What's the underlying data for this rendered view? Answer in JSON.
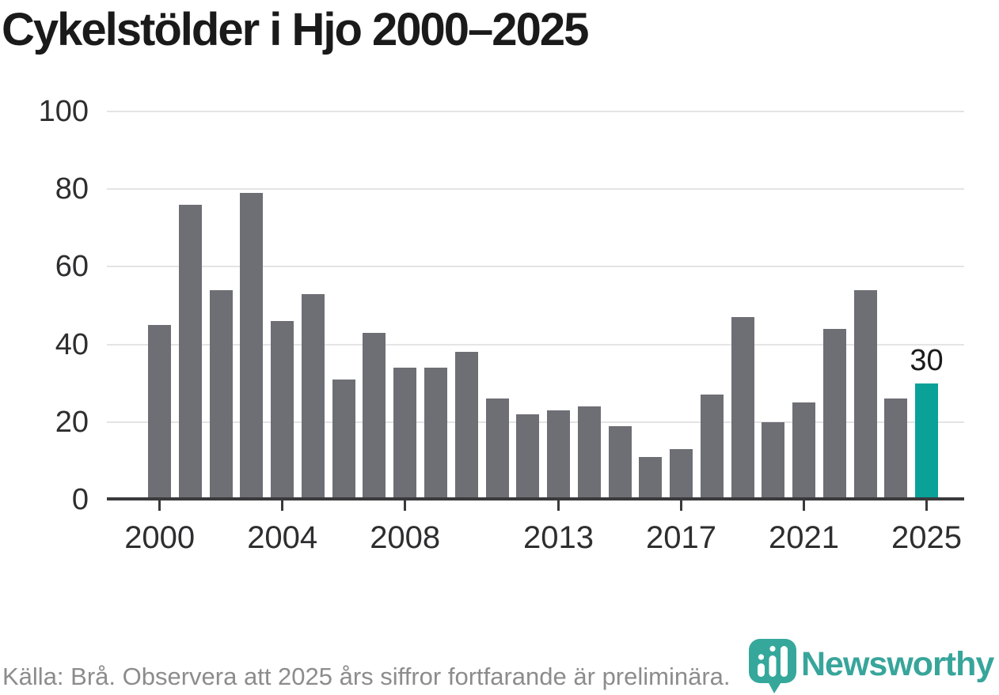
{
  "title": "Cykelstölder i Hjo 2000–2025",
  "footer": {
    "source_note": "Källa: Brå. Observera att 2025 års siffror fortfarande är preliminära."
  },
  "branding": {
    "name": "Newsworthy",
    "logo_icon": "speech-bubble-bar-chart-icon",
    "brand_color": "#38a59b",
    "icon_color": "#35a89b"
  },
  "colors": {
    "bar": "#6e6e75",
    "highlight_bar": "#0aa199",
    "axis": "#3a3a3c",
    "gridline": "#e4e4e6",
    "title_text": "#1a1a1a",
    "tick_text": "#2e2e30",
    "footer_text": "#8c8c8c",
    "value_label_text": "#1a1a1a"
  },
  "chart_data": {
    "type": "bar",
    "title": "Cykelstölder i Hjo 2000–2025",
    "categories": [
      2000,
      2001,
      2002,
      2003,
      2004,
      2005,
      2006,
      2007,
      2008,
      2009,
      2010,
      2011,
      2012,
      2013,
      2014,
      2015,
      2016,
      2017,
      2018,
      2019,
      2020,
      2021,
      2022,
      2023,
      2024,
      2025
    ],
    "values": [
      45,
      76,
      54,
      79,
      46,
      53,
      31,
      43,
      34,
      34,
      38,
      26,
      22,
      23,
      24,
      19,
      11,
      13,
      27,
      47,
      20,
      25,
      44,
      54,
      26,
      30
    ],
    "highlight_category": 2025,
    "highlight_index": 25,
    "highlight_value_label": "30",
    "x_tick_years": [
      2000,
      2004,
      2008,
      2013,
      2017,
      2021,
      2025
    ],
    "x_tick_labels": [
      "2000",
      "2004",
      "2008",
      "2013",
      "2017",
      "2021",
      "2025"
    ],
    "y_ticks": [
      0,
      20,
      40,
      60,
      80,
      100
    ],
    "y_tick_labels": [
      "0",
      "20",
      "40",
      "60",
      "80",
      "100"
    ],
    "ylim": [
      0,
      100
    ],
    "xlabel": "",
    "ylabel": "",
    "grid": "horizontal",
    "legend": "none"
  }
}
